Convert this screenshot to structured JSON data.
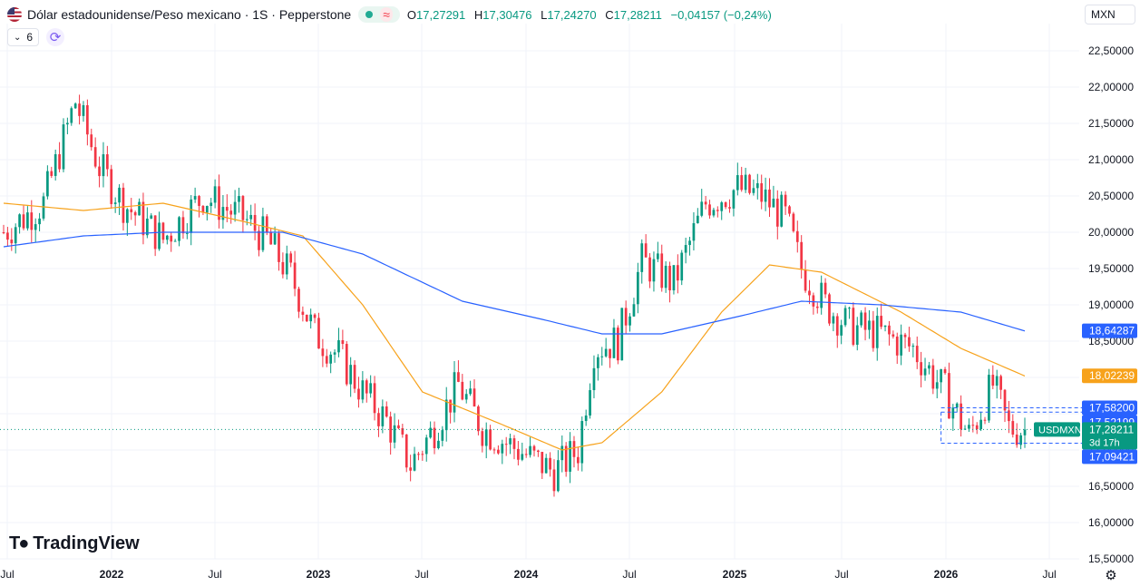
{
  "header": {
    "title": "Dólar estadounidense/Peso mexicano · 1S · Pepperstone",
    "approx_symbol": "≈",
    "ohlc": {
      "o_label": "O",
      "o": "17,27291",
      "h_label": "H",
      "h": "17,30476",
      "l_label": "L",
      "l": "17,24270",
      "c_label": "C",
      "c": "17,28211",
      "change": "−0,04157 (−0,24%)"
    },
    "indicators_count": "6",
    "currency": "MXN"
  },
  "logo_text": "TradingView",
  "colors": {
    "up": "#089981",
    "down": "#f23645",
    "ma_fast": "#f7a21b",
    "ma_slow": "#2962ff",
    "grid": "#f0f3fa"
  },
  "chart_data": {
    "type": "candlestick",
    "symbol": "USDMXN",
    "timeframe": "1S",
    "ylim": [
      15.5,
      22.5
    ],
    "y_ticks": [
      "15,50000",
      "16,00000",
      "16,50000",
      "17,00000",
      "17,50000",
      "18,00000",
      "18,50000",
      "19,00000",
      "19,50000",
      "20,00000",
      "20,50000",
      "21,00000",
      "21,50000",
      "22,00000",
      "22,50000"
    ],
    "x_ticks": [
      "Jul",
      "2022",
      "Jul",
      "2023",
      "Jul",
      "2024",
      "Jul",
      "2025",
      "Jul",
      "2026",
      "Jul"
    ],
    "keypoints": [
      {
        "w": 0,
        "p": 20.0
      },
      {
        "w": 10,
        "p": 20.4
      },
      {
        "w": 18,
        "p": 21.8
      },
      {
        "w": 24,
        "p": 20.9
      },
      {
        "w": 30,
        "p": 20.4
      },
      {
        "w": 40,
        "p": 19.9
      },
      {
        "w": 50,
        "p": 20.5
      },
      {
        "w": 60,
        "p": 20.2
      },
      {
        "w": 66,
        "p": 19.9
      },
      {
        "w": 72,
        "p": 19.4
      },
      {
        "w": 78,
        "p": 18.6
      },
      {
        "w": 84,
        "p": 18.3
      },
      {
        "w": 90,
        "p": 17.8
      },
      {
        "w": 96,
        "p": 17.4
      },
      {
        "w": 102,
        "p": 16.8
      },
      {
        "w": 108,
        "p": 17.3
      },
      {
        "w": 114,
        "p": 17.9
      },
      {
        "w": 120,
        "p": 17.3
      },
      {
        "w": 126,
        "p": 17.1
      },
      {
        "w": 132,
        "p": 16.9
      },
      {
        "w": 138,
        "p": 16.7
      },
      {
        "w": 144,
        "p": 17.0
      },
      {
        "w": 148,
        "p": 18.4
      },
      {
        "w": 154,
        "p": 18.5
      },
      {
        "w": 160,
        "p": 19.6
      },
      {
        "w": 168,
        "p": 19.3
      },
      {
        "w": 176,
        "p": 20.4
      },
      {
        "w": 184,
        "p": 20.6
      },
      {
        "w": 190,
        "p": 20.5
      },
      {
        "w": 196,
        "p": 20.2
      },
      {
        "w": 200,
        "p": 19.5
      },
      {
        "w": 206,
        "p": 19.0
      },
      {
        "w": 212,
        "p": 18.7
      },
      {
        "w": 220,
        "p": 18.6
      },
      {
        "w": 228,
        "p": 18.4
      },
      {
        "w": 236,
        "p": 17.8
      },
      {
        "w": 242,
        "p": 17.2
      },
      {
        "w": 248,
        "p": 17.9
      },
      {
        "w": 252,
        "p": 17.3
      },
      {
        "w": 256,
        "p": 17.28
      }
    ],
    "ma_fast": [
      {
        "w": 0,
        "p": 20.4
      },
      {
        "w": 20,
        "p": 20.3
      },
      {
        "w": 40,
        "p": 20.4
      },
      {
        "w": 60,
        "p": 20.15
      },
      {
        "w": 75,
        "p": 19.95
      },
      {
        "w": 90,
        "p": 19.0
      },
      {
        "w": 105,
        "p": 17.8
      },
      {
        "w": 125,
        "p": 17.35
      },
      {
        "w": 140,
        "p": 17.0
      },
      {
        "w": 150,
        "p": 17.1
      },
      {
        "w": 165,
        "p": 17.8
      },
      {
        "w": 180,
        "p": 18.9
      },
      {
        "w": 192,
        "p": 19.55
      },
      {
        "w": 205,
        "p": 19.45
      },
      {
        "w": 225,
        "p": 18.9
      },
      {
        "w": 240,
        "p": 18.4
      },
      {
        "w": 256,
        "p": 18.02
      }
    ],
    "ma_slow": [
      {
        "w": 0,
        "p": 19.8
      },
      {
        "w": 20,
        "p": 19.95
      },
      {
        "w": 40,
        "p": 20.0
      },
      {
        "w": 70,
        "p": 20.0
      },
      {
        "w": 90,
        "p": 19.7
      },
      {
        "w": 115,
        "p": 19.05
      },
      {
        "w": 135,
        "p": 18.8
      },
      {
        "w": 150,
        "p": 18.6
      },
      {
        "w": 165,
        "p": 18.6
      },
      {
        "w": 185,
        "p": 18.85
      },
      {
        "w": 200,
        "p": 19.05
      },
      {
        "w": 220,
        "p": 19.0
      },
      {
        "w": 240,
        "p": 18.9
      },
      {
        "w": 256,
        "p": 18.64
      }
    ],
    "price_labels": [
      {
        "value": 18.64287,
        "text": "18,64287",
        "color": "#2962ff"
      },
      {
        "value": 18.02239,
        "text": "18,02239",
        "color": "#f7a21b"
      },
      {
        "value": 17.582,
        "text": "17,58200",
        "color": "#2962ff"
      },
      {
        "value": 17.52199,
        "text": "17,52199",
        "color": "#2962ff"
      },
      {
        "value": 17.09421,
        "text": "17,09421",
        "color": "#2962ff"
      }
    ],
    "last_price": {
      "value": 17.28211,
      "text": "17,28211",
      "countdown": "3d 17h",
      "symbol": "USDMXN",
      "color": "#089981"
    }
  }
}
